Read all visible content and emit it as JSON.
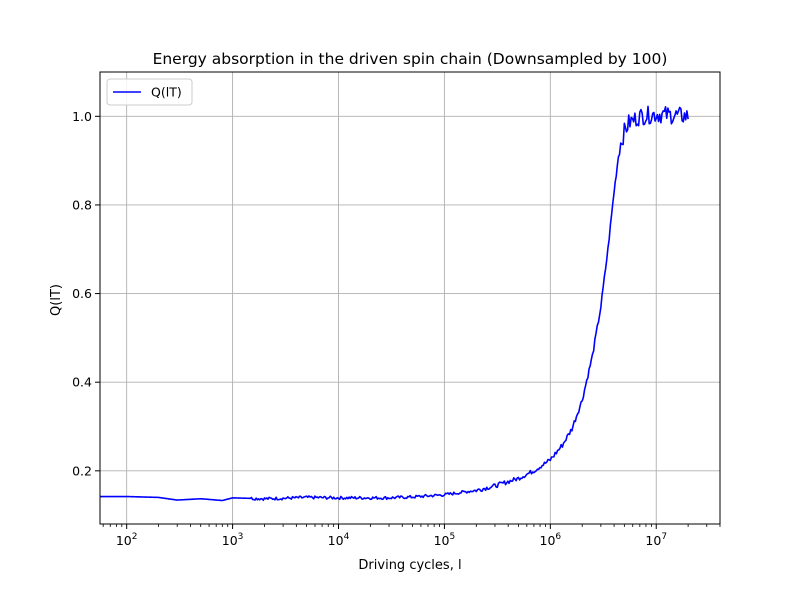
{
  "chart_data": {
    "type": "line",
    "title": "Energy absorption in the driven spin chain (Downsampled by 100)",
    "xlabel": "Driving cycles, l",
    "ylabel": "Q(lT)",
    "xscale": "log",
    "xlim": [
      56,
      40000000
    ],
    "ylim": [
      0.08,
      1.1
    ],
    "grid": true,
    "legend": "top-left",
    "x_ticks": [
      {
        "value": 100,
        "mantissa": "10",
        "exp": "2"
      },
      {
        "value": 1000,
        "mantissa": "10",
        "exp": "3"
      },
      {
        "value": 10000,
        "mantissa": "10",
        "exp": "4"
      },
      {
        "value": 100000,
        "mantissa": "10",
        "exp": "5"
      },
      {
        "value": 1000000,
        "mantissa": "10",
        "exp": "6"
      },
      {
        "value": 10000000,
        "mantissa": "10",
        "exp": "7"
      }
    ],
    "y_ticks": [
      {
        "value": 0.2,
        "label": "0.2"
      },
      {
        "value": 0.4,
        "label": "0.4"
      },
      {
        "value": 0.6,
        "label": "0.6"
      },
      {
        "value": 0.8,
        "label": "0.8"
      },
      {
        "value": 1.0,
        "label": "1.0"
      }
    ],
    "series": [
      {
        "name": "Q(lT)",
        "color": "#0000ff",
        "points": [
          [
            56,
            0.142
          ],
          [
            100,
            0.142
          ],
          [
            200,
            0.14
          ],
          [
            300,
            0.134
          ],
          [
            500,
            0.137
          ],
          [
            800,
            0.133
          ],
          [
            1000,
            0.139
          ],
          [
            2000,
            0.137
          ],
          [
            3000,
            0.138
          ],
          [
            5000,
            0.14
          ],
          [
            10000,
            0.139
          ],
          [
            20000,
            0.139
          ],
          [
            30000,
            0.139
          ],
          [
            50000,
            0.141
          ],
          [
            100000,
            0.146
          ],
          [
            200000,
            0.156
          ],
          [
            300000,
            0.166
          ],
          [
            500000,
            0.183
          ],
          [
            700000,
            0.2
          ],
          [
            1000000,
            0.225
          ],
          [
            1300000,
            0.258
          ],
          [
            1600000,
            0.295
          ],
          [
            2000000,
            0.36
          ],
          [
            2500000,
            0.46
          ],
          [
            3000000,
            0.57
          ],
          [
            3500000,
            0.7
          ],
          [
            4000000,
            0.83
          ],
          [
            4500000,
            0.93
          ],
          [
            5000000,
            0.965
          ],
          [
            5500000,
            0.985
          ],
          [
            7000000,
            1.0
          ],
          [
            10000000,
            1.005
          ],
          [
            15000000,
            1.002
          ],
          [
            20000000,
            1.0
          ]
        ]
      }
    ]
  }
}
